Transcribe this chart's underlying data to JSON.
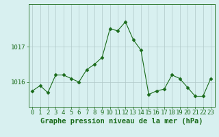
{
  "x": [
    0,
    1,
    2,
    3,
    4,
    5,
    6,
    7,
    8,
    9,
    10,
    11,
    12,
    13,
    14,
    15,
    16,
    17,
    18,
    19,
    20,
    21,
    22,
    23
  ],
  "y": [
    1015.75,
    1015.9,
    1015.7,
    1016.2,
    1016.2,
    1016.1,
    1016.0,
    1016.35,
    1016.5,
    1016.7,
    1017.5,
    1017.45,
    1017.7,
    1017.2,
    1016.9,
    1015.65,
    1015.75,
    1015.8,
    1016.2,
    1016.1,
    1015.85,
    1015.6,
    1015.6,
    1016.1
  ],
  "line_color": "#1a6b1a",
  "marker": "D",
  "marker_size": 2.5,
  "bg_color": "#d8f0f0",
  "grid_color": "#b0c8c8",
  "title": "Graphe pression niveau de la mer (hPa)",
  "ylim": [
    1015.3,
    1018.2
  ],
  "yticks": [
    1016,
    1017
  ],
  "xlim": [
    -0.5,
    23.5
  ],
  "xticks": [
    0,
    1,
    2,
    3,
    4,
    5,
    6,
    7,
    8,
    9,
    10,
    11,
    12,
    13,
    14,
    15,
    16,
    17,
    18,
    19,
    20,
    21,
    22,
    23
  ],
  "title_fontsize": 7.5,
  "tick_fontsize": 6.5,
  "tick_color": "#1a6b1a",
  "axis_color": "#1a6b1a",
  "figsize": [
    3.2,
    2.0
  ],
  "dpi": 100
}
